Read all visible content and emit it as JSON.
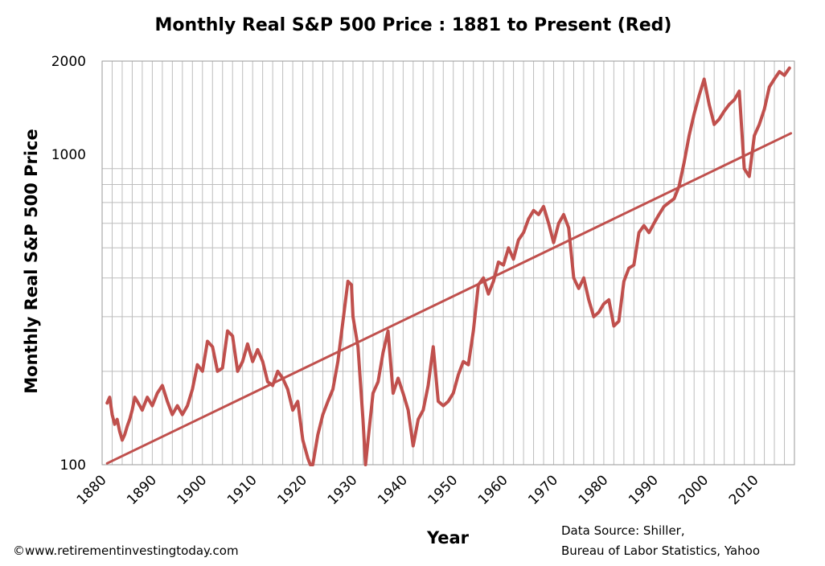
{
  "chart_data": {
    "type": "line",
    "title": "Monthly Real S&P 500 Price : 1881 to Present (Red)",
    "xlabel": "Year",
    "ylabel": "Monthly Real S&P 500 Price",
    "y_scale": "log",
    "ylim": [
      100,
      2000
    ],
    "xlim": [
      1880,
      2018
    ],
    "x_ticks": [
      "1880",
      "1890",
      "1900",
      "1910",
      "1920",
      "1930",
      "1940",
      "1950",
      "1960",
      "1970",
      "1980",
      "1990",
      "2000",
      "2010"
    ],
    "y_ticks": [
      "100",
      "1000",
      "2000"
    ],
    "y_minor_grid": [
      200,
      300,
      400,
      500,
      600,
      700,
      800,
      900,
      2000
    ],
    "x_grid_step": 2,
    "grid": true,
    "line_color": "#c0504d",
    "series": [
      {
        "x": [
          1881.0,
          1881.5,
          1882.0,
          1882.5,
          1883.0,
          1883.5,
          1884.0,
          1884.5,
          1885.0,
          1885.5,
          1886.0,
          1886.5,
          1887.0,
          1887.5,
          1888.0,
          1889.0,
          1890.0,
          1891.0,
          1892.0,
          1893.0,
          1894.0,
          1895.0,
          1896.0,
          1897.0,
          1898.0,
          1899.0,
          1900.0,
          1901.0,
          1902.0,
          1903.0,
          1904.0,
          1905.0,
          1906.0,
          1907.0,
          1908.0,
          1909.0,
          1910.0,
          1911.0,
          1912.0,
          1913.0,
          1914.0,
          1915.0,
          1916.0,
          1917.0,
          1918.0,
          1919.0,
          1920.0,
          1921.0,
          1921.5,
          1922.0,
          1923.0,
          1924.0,
          1925.0,
          1926.0,
          1927.0,
          1928.0,
          1929.0,
          1929.7,
          1930.0,
          1931.0,
          1932.0,
          1932.5,
          1933.0,
          1934.0,
          1935.0,
          1936.0,
          1937.0,
          1938.0,
          1939.0,
          1940.0,
          1941.0,
          1942.0,
          1943.0,
          1944.0,
          1945.0,
          1946.0,
          1947.0,
          1948.0,
          1949.0,
          1950.0,
          1951.0,
          1952.0,
          1953.0,
          1954.0,
          1955.0,
          1956.0,
          1957.0,
          1958.0,
          1959.0,
          1960.0,
          1961.0,
          1962.0,
          1963.0,
          1964.0,
          1965.0,
          1966.0,
          1967.0,
          1968.0,
          1969.0,
          1970.0,
          1971.0,
          1972.0,
          1973.0,
          1974.0,
          1975.0,
          1976.0,
          1977.0,
          1978.0,
          1979.0,
          1980.0,
          1981.0,
          1982.0,
          1983.0,
          1984.0,
          1985.0,
          1986.0,
          1987.0,
          1988.0,
          1989.0,
          1990.0,
          1991.0,
          1992.0,
          1993.0,
          1994.0,
          1995.0,
          1996.0,
          1997.0,
          1998.0,
          1999.0,
          2000.0,
          2001.0,
          2002.0,
          2003.0,
          2004.0,
          2005.0,
          2006.0,
          2007.0,
          2008.0,
          2009.0,
          2010.0,
          2011.0,
          2012.0,
          2013.0,
          2014.0,
          2015.0,
          2016.0,
          2017.0
        ],
        "values": [
          158,
          165,
          145,
          135,
          140,
          128,
          120,
          125,
          133,
          140,
          150,
          165,
          160,
          155,
          150,
          165,
          155,
          170,
          180,
          160,
          145,
          155,
          145,
          155,
          175,
          210,
          200,
          250,
          240,
          200,
          205,
          270,
          260,
          200,
          215,
          245,
          215,
          235,
          215,
          185,
          180,
          200,
          190,
          175,
          150,
          160,
          120,
          105,
          100,
          100,
          125,
          145,
          160,
          175,
          215,
          290,
          390,
          380,
          300,
          240,
          140,
          100,
          120,
          170,
          185,
          230,
          270,
          170,
          190,
          170,
          150,
          115,
          140,
          150,
          180,
          240,
          160,
          155,
          160,
          170,
          195,
          215,
          210,
          270,
          380,
          400,
          355,
          390,
          450,
          440,
          500,
          460,
          530,
          560,
          620,
          660,
          640,
          680,
          600,
          520,
          600,
          640,
          580,
          400,
          370,
          400,
          340,
          300,
          310,
          330,
          340,
          280,
          290,
          390,
          430,
          440,
          560,
          590,
          560,
          600,
          640,
          680,
          700,
          720,
          790,
          940,
          1150,
          1350,
          1550,
          1750,
          1450,
          1250,
          1300,
          1380,
          1450,
          1500,
          1600,
          900,
          850,
          1150,
          1250,
          1400,
          1650,
          1750,
          1850,
          1800,
          1900
        ]
      },
      {
        "x": [
          1881.0,
          2017.3
        ],
        "values": [
          101,
          1170
        ]
      }
    ]
  },
  "footer": {
    "copyright": "©www.retirementinvestingtoday.com",
    "source_line1": "Data Source: Shiller,",
    "source_line2": "Bureau of Labor Statistics, Yahoo"
  }
}
